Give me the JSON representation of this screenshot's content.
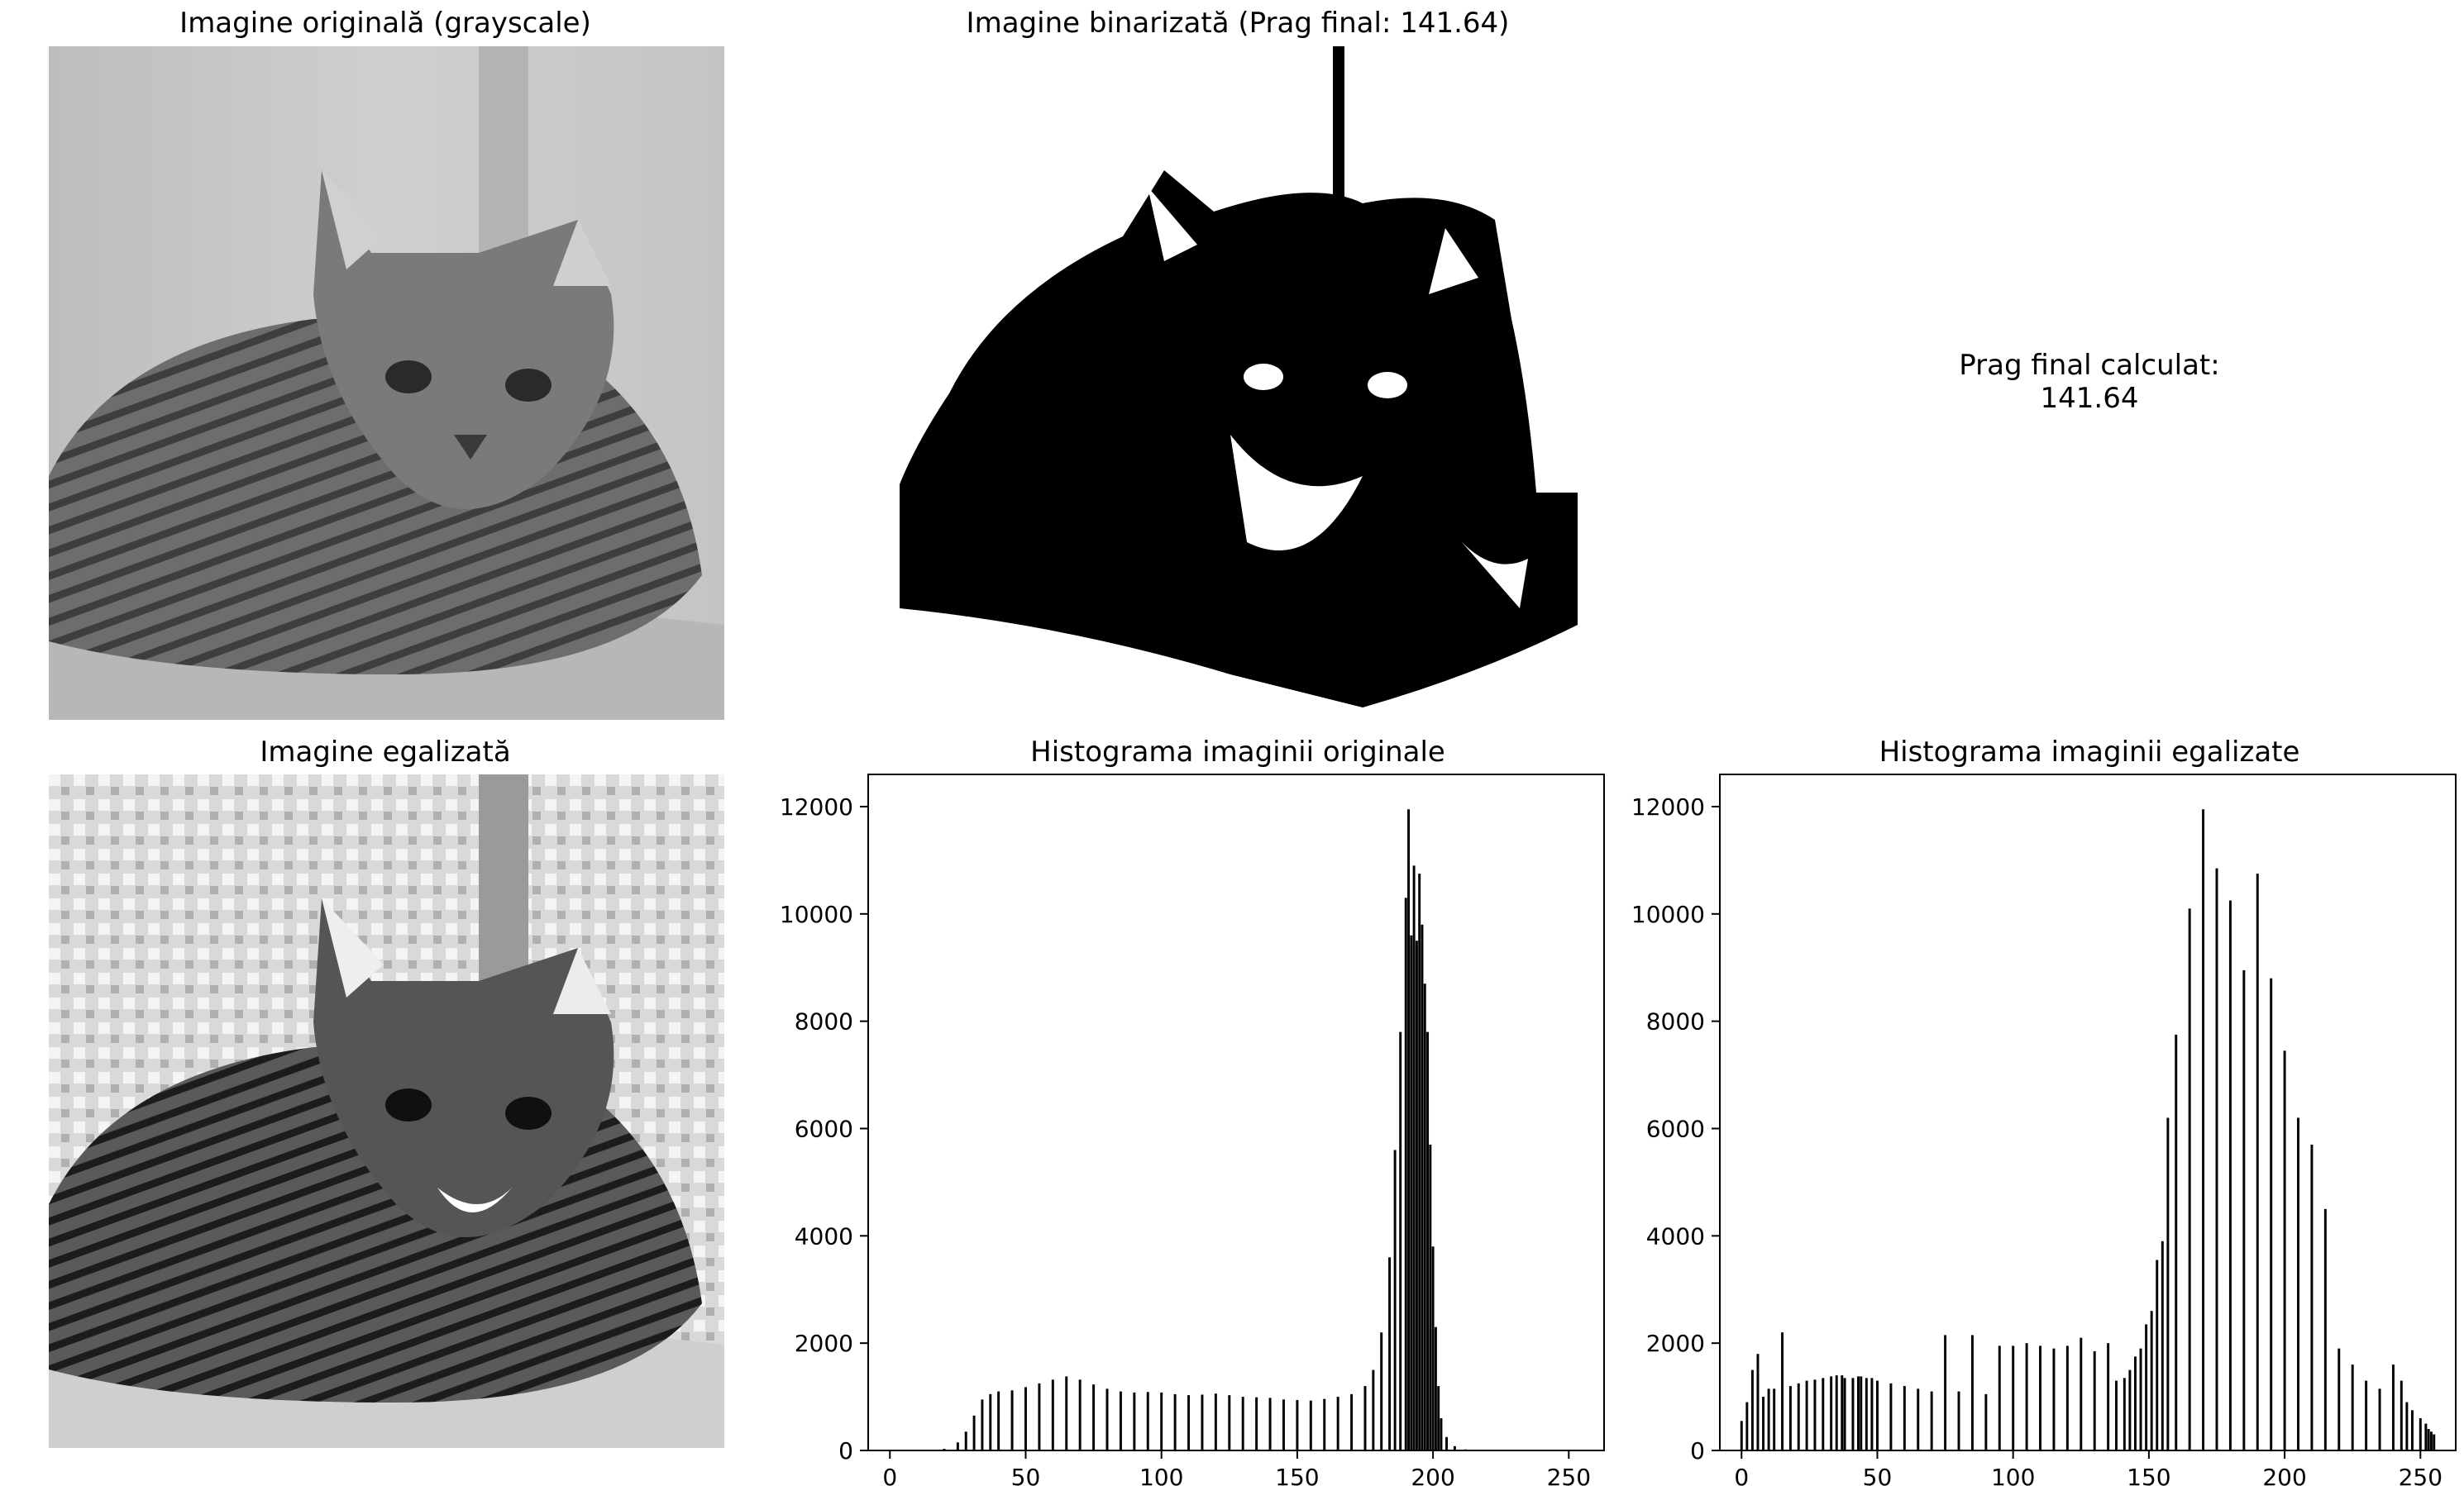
{
  "panels": {
    "original": {
      "title": "Imagine originală (grayscale)"
    },
    "binarized": {
      "title": "Imagine binarizată (Prag final: 141.64)"
    },
    "threshold": {
      "line1": "Prag final calculat:",
      "line2": "141.64"
    },
    "equalized": {
      "title": "Imagine egalizată"
    }
  },
  "colors": {
    "bars": "#000000",
    "axis": "#000000",
    "background": "#ffffff"
  },
  "chart_data": [
    {
      "type": "bar",
      "title": "Histograma imaginii originale",
      "xlabel": "",
      "ylabel": "",
      "xlim": [
        -8,
        263
      ],
      "ylim": [
        0,
        12600
      ],
      "xticks": [
        0,
        50,
        100,
        150,
        200,
        250
      ],
      "yticks": [
        0,
        2000,
        4000,
        6000,
        8000,
        10000,
        12000
      ],
      "x": [
        0,
        5,
        10,
        15,
        20,
        25,
        28,
        31,
        34,
        37,
        40,
        45,
        50,
        55,
        60,
        65,
        70,
        75,
        80,
        85,
        90,
        95,
        100,
        105,
        110,
        115,
        120,
        125,
        130,
        135,
        140,
        145,
        150,
        155,
        160,
        165,
        170,
        175,
        178,
        181,
        184,
        186,
        188,
        190,
        191,
        192,
        193,
        194,
        195,
        196,
        197,
        198,
        199,
        200,
        201,
        202,
        203,
        205,
        208,
        212,
        216,
        220,
        225,
        230,
        240,
        255
      ],
      "values": [
        0,
        0,
        0,
        5,
        30,
        150,
        350,
        650,
        950,
        1050,
        1100,
        1120,
        1180,
        1250,
        1320,
        1380,
        1320,
        1230,
        1150,
        1100,
        1080,
        1090,
        1080,
        1050,
        1030,
        1040,
        1060,
        1030,
        1000,
        990,
        980,
        950,
        940,
        930,
        960,
        1000,
        1050,
        1200,
        1500,
        2200,
        3600,
        5600,
        7800,
        10300,
        11950,
        9600,
        10900,
        9500,
        10750,
        9800,
        8700,
        7800,
        5700,
        3800,
        2300,
        1200,
        600,
        250,
        80,
        20,
        5,
        0,
        0,
        0,
        0,
        0
      ]
    },
    {
      "type": "bar",
      "title": "Histograma imaginii egalizate",
      "xlabel": "",
      "ylabel": "",
      "xlim": [
        -8,
        263
      ],
      "ylim": [
        0,
        12600
      ],
      "xticks": [
        0,
        50,
        100,
        150,
        200,
        250
      ],
      "yticks": [
        0,
        2000,
        4000,
        6000,
        8000,
        10000,
        12000
      ],
      "x": [
        0,
        2,
        4,
        6,
        8,
        10,
        12,
        15,
        18,
        21,
        24,
        27,
        30,
        33,
        35,
        37,
        38,
        41,
        43,
        44,
        46,
        48,
        50,
        55,
        60,
        65,
        70,
        75,
        80,
        85,
        90,
        95,
        100,
        105,
        110,
        115,
        120,
        125,
        130,
        135,
        138,
        141,
        143,
        145,
        147,
        149,
        151,
        153,
        155,
        157,
        160,
        165,
        170,
        175,
        180,
        185,
        190,
        195,
        200,
        205,
        210,
        215,
        220,
        225,
        230,
        235,
        240,
        243,
        245,
        247,
        250,
        252,
        253,
        254,
        255
      ],
      "values": [
        550,
        900,
        1500,
        1800,
        1000,
        1150,
        1150,
        2200,
        1200,
        1250,
        1300,
        1320,
        1350,
        1380,
        1400,
        1400,
        1350,
        1350,
        1380,
        1380,
        1350,
        1350,
        1300,
        1250,
        1200,
        1150,
        1100,
        2150,
        1100,
        2150,
        1050,
        1950,
        1950,
        2000,
        1950,
        1900,
        1950,
        2100,
        1850,
        2000,
        1300,
        1350,
        1500,
        1750,
        1900,
        2350,
        2600,
        3550,
        3900,
        6200,
        7750,
        10100,
        11950,
        10850,
        10250,
        8950,
        10750,
        8800,
        7450,
        6200,
        5700,
        4500,
        1900,
        1600,
        1300,
        1150,
        1600,
        1300,
        900,
        750,
        600,
        500,
        400,
        350,
        300
      ]
    }
  ]
}
